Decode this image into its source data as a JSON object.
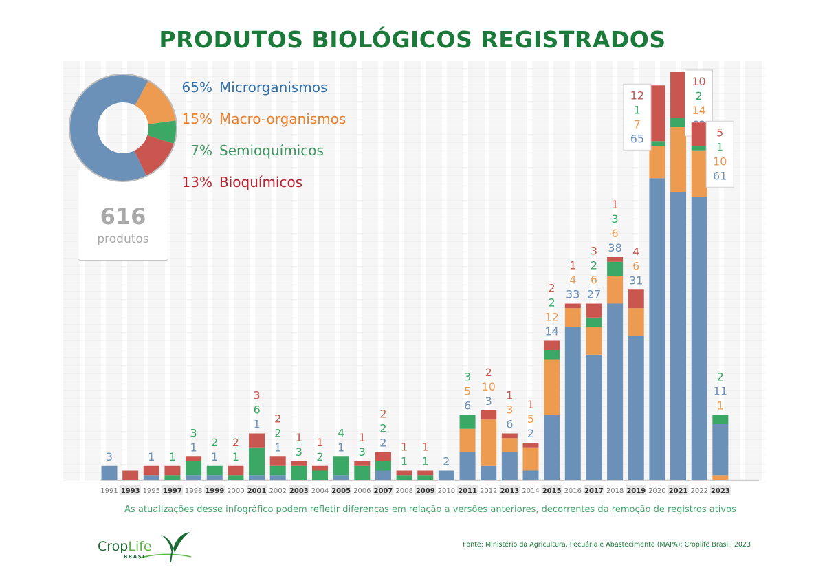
{
  "title": "PRODUTOS BIOLÓGICOS REGISTRADOS",
  "summary": {
    "total": "616",
    "total_label": "produtos",
    "legend": [
      {
        "pct": "65%",
        "label": "Microrganismos",
        "color": "#2f6ea8",
        "slice_color": "#6b91b8",
        "value": 65
      },
      {
        "pct": "15%",
        "label": "Macro-organismos",
        "color": "#e8802f",
        "slice_color": "#ee9b52",
        "value": 15
      },
      {
        "pct": "7%",
        "label": "Semioquímicos",
        "color": "#3e9463",
        "slice_color": "#3ba866",
        "value": 7
      },
      {
        "pct": "13%",
        "label": "Bioquímicos",
        "color": "#b8232f",
        "slice_color": "#c9574f",
        "value": 13
      }
    ]
  },
  "chart_data": {
    "type": "bar",
    "stacked": true,
    "title": "PRODUTOS BIOLÓGICOS REGISTRADOS",
    "xlabel": "",
    "ylabel": "",
    "categories": [
      "1991",
      "1993",
      "1995",
      "1997",
      "1998",
      "1999",
      "2000",
      "2001",
      "2002",
      "2003",
      "2004",
      "2005",
      "2006",
      "2007",
      "2008",
      "2009",
      "2010",
      "2011",
      "2012",
      "2013",
      "2014",
      "2015",
      "2016",
      "2017",
      "2018",
      "2019",
      "2020",
      "2021",
      "2022",
      "2023"
    ],
    "highlighted_categories": [
      "1993",
      "1997",
      "1999",
      "2001",
      "2003",
      "2005",
      "2007",
      "2009",
      "2011",
      "2013",
      "2015",
      "2017",
      "2019",
      "2021",
      "2023"
    ],
    "series": [
      {
        "name": "Microrganismos",
        "color": "#6b91b8",
        "label_color": "#6b91b8",
        "values": [
          3,
          0,
          1,
          0,
          1,
          1,
          0,
          1,
          1,
          0,
          0,
          1,
          0,
          2,
          0,
          0,
          2,
          6,
          3,
          6,
          2,
          14,
          33,
          27,
          38,
          31,
          65,
          62,
          61,
          11
        ]
      },
      {
        "name": "Macro-organismos",
        "color": "#ee9b52",
        "label_color": "#ee9b52",
        "values": [
          0,
          0,
          0,
          0,
          0,
          0,
          0,
          0,
          0,
          0,
          0,
          0,
          0,
          0,
          0,
          0,
          0,
          5,
          10,
          3,
          5,
          12,
          4,
          6,
          6,
          6,
          7,
          14,
          10,
          1
        ]
      },
      {
        "name": "Semioquímicos",
        "color": "#3ba866",
        "label_color": "#3ba866",
        "values": [
          0,
          0,
          0,
          1,
          3,
          2,
          1,
          6,
          2,
          3,
          2,
          4,
          3,
          2,
          1,
          1,
          0,
          3,
          0,
          0,
          0,
          2,
          0,
          2,
          3,
          0,
          1,
          2,
          1,
          2
        ]
      },
      {
        "name": "Bioquímicos",
        "color": "#c9574f",
        "label_color": "#c9574f",
        "values": [
          0,
          2,
          2,
          2,
          1,
          0,
          2,
          3,
          2,
          1,
          1,
          0,
          1,
          2,
          1,
          1,
          0,
          0,
          2,
          1,
          1,
          2,
          1,
          3,
          1,
          4,
          12,
          10,
          5,
          0
        ]
      }
    ],
    "data_labels": [
      [
        "3"
      ],
      [],
      [
        "1"
      ],
      [
        "1"
      ],
      [
        "3",
        "1"
      ],
      [
        "2",
        "1"
      ],
      [
        "2",
        "1"
      ],
      [
        "3",
        "6",
        "1"
      ],
      [
        "2",
        "2",
        "1"
      ],
      [
        "1",
        "3"
      ],
      [
        "1",
        "2"
      ],
      [
        "4",
        "1"
      ],
      [
        "1",
        "3"
      ],
      [
        "2",
        "2",
        "2"
      ],
      [
        "1",
        "1"
      ],
      [
        "1",
        "1"
      ],
      [
        "2"
      ],
      [
        "3",
        "5",
        "6"
      ],
      [
        "2",
        "10",
        "3"
      ],
      [
        "1",
        "3",
        "6"
      ],
      [
        "1",
        "5",
        "2"
      ],
      [
        "2",
        "2",
        "12",
        "14"
      ],
      [
        "1",
        "4",
        "33"
      ],
      [
        "3",
        "2",
        "6",
        "27"
      ],
      [
        "1",
        "3",
        "6",
        "38"
      ],
      [
        "4",
        "6",
        "31"
      ],
      [
        "12",
        "1",
        "7",
        "65"
      ],
      [
        "10",
        "2",
        "14",
        "62"
      ],
      [
        "5",
        "1",
        "10",
        "61"
      ],
      [
        "2",
        "11",
        "1"
      ]
    ],
    "data_label_series": [
      [
        "Microrganismos"
      ],
      [],
      [
        "Microrganismos"
      ],
      [
        "Semioquímicos"
      ],
      [
        "Semioquímicos",
        "Microrganismos"
      ],
      [
        "Semioquímicos",
        "Microrganismos"
      ],
      [
        "Bioquímicos",
        "Semioquímicos"
      ],
      [
        "Bioquímicos",
        "Semioquímicos",
        "Microrganismos"
      ],
      [
        "Bioquímicos",
        "Semioquímicos",
        "Microrganismos"
      ],
      [
        "Bioquímicos",
        "Semioquímicos"
      ],
      [
        "Bioquímicos",
        "Semioquímicos"
      ],
      [
        "Semioquímicos",
        "Microrganismos"
      ],
      [
        "Bioquímicos",
        "Semioquímicos"
      ],
      [
        "Bioquímicos",
        "Semioquímicos",
        "Microrganismos"
      ],
      [
        "Bioquímicos",
        "Semioquímicos"
      ],
      [
        "Bioquímicos",
        "Semioquímicos"
      ],
      [
        "Microrganismos"
      ],
      [
        "Semioquímicos",
        "Macro-organismos",
        "Microrganismos"
      ],
      [
        "Bioquímicos",
        "Macro-organismos",
        "Microrganismos"
      ],
      [
        "Bioquímicos",
        "Macro-organismos",
        "Microrganismos"
      ],
      [
        "Bioquímicos",
        "Macro-organismos",
        "Microrganismos"
      ],
      [
        "Bioquímicos",
        "Semioquímicos",
        "Macro-organismos",
        "Microrganismos"
      ],
      [
        "Bioquímicos",
        "Macro-organismos",
        "Microrganismos"
      ],
      [
        "Bioquímicos",
        "Semioquímicos",
        "Macro-organismos",
        "Microrganismos"
      ],
      [
        "Bioquímicos",
        "Semioquímicos",
        "Macro-organismos",
        "Microrganismos"
      ],
      [
        "Bioquímicos",
        "Macro-organismos",
        "Microrganismos"
      ],
      [
        "Bioquímicos",
        "Semioquímicos",
        "Macro-organismos",
        "Microrganismos"
      ],
      [
        "Bioquímicos",
        "Semioquímicos",
        "Macro-organismos",
        "Microrganismos"
      ],
      [
        "Bioquímicos",
        "Semioquímicos",
        "Macro-organismos",
        "Microrganismos"
      ],
      [
        "Semioquímicos",
        "Microrganismos",
        "Macro-organismos"
      ]
    ],
    "boxed_label_categories": [
      "2020",
      "2021",
      "2022"
    ],
    "stack_order_override": {
      "2023": [
        "Macro-organismos",
        "Microrganismos",
        "Semioquímicos",
        "Bioquímicos"
      ]
    },
    "ylim": [
      0,
      90
    ],
    "grid": false,
    "legend": "top-left"
  },
  "footer": {
    "note": "As atualizações desse infográfico podem refletir diferenças em relação a versões anteriores, decorrentes da remoção de registros ativos",
    "source": "Fonte: Ministério da Agricultura, Pecuária e Abastecimento (MAPA); Croplife Brasil, 2023",
    "logo_main_a": "Crop",
    "logo_main_b": "Life",
    "logo_sub": "BRASIL"
  }
}
